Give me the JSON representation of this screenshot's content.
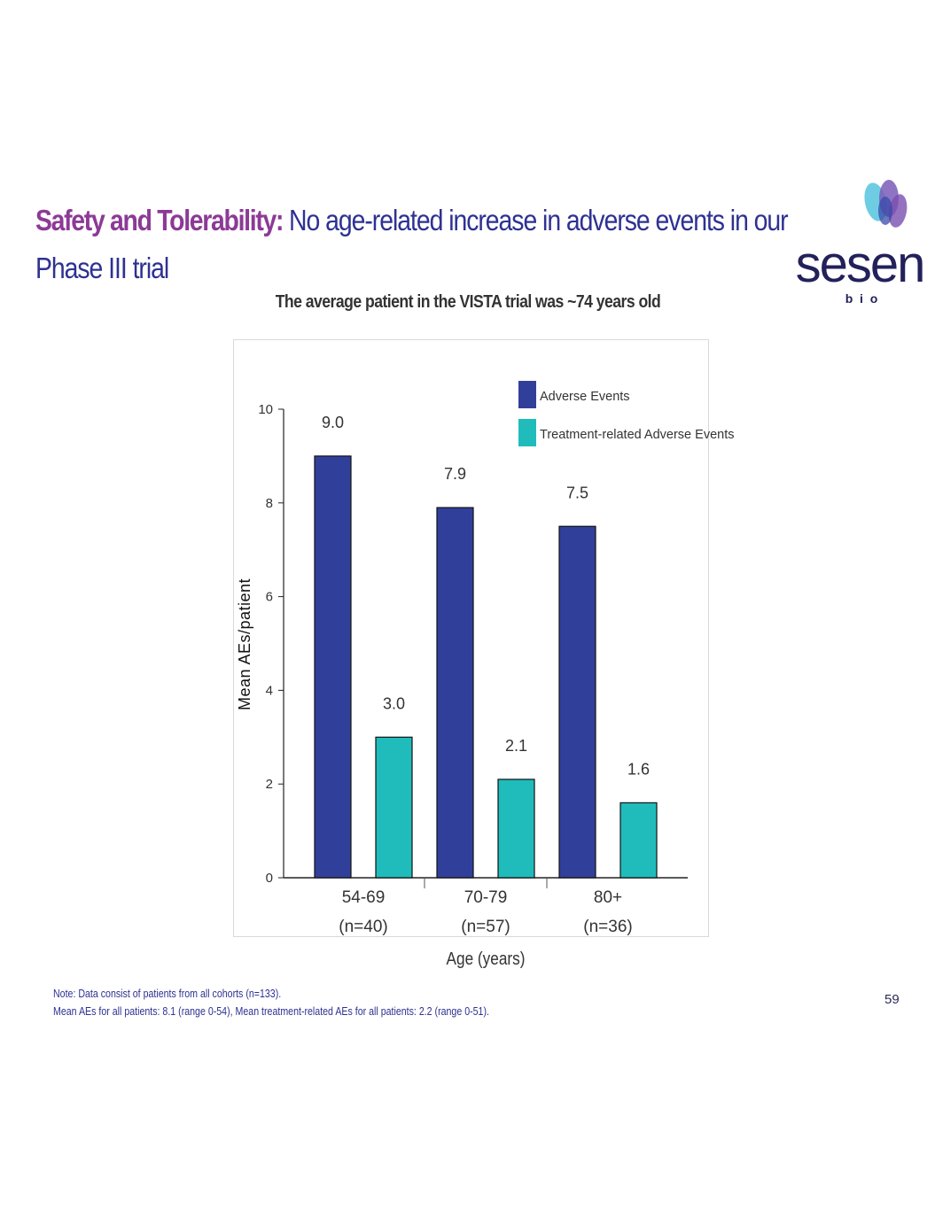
{
  "slide": {
    "title_lead": "Safety and Tolerability:",
    "title_rest_line1": "No age-related increase in adverse events in our",
    "title_line2": "Phase III trial",
    "subtitle": "The average patient in the VISTA trial was ~74 years old",
    "logo_word": "sesen",
    "logo_sub": "b  i  o",
    "note_line1": "Note: Data consist of patients from all cohorts (n=133).",
    "note_line2": "Mean AEs for all patients: 8.1 (range 0-54), Mean treatment-related AEs for all patients: 2.2 (range 0-51).",
    "page_number": "59"
  },
  "colors": {
    "title_lead": "#8c3a96",
    "title_main": "#2e3192",
    "adverse_events": "#30409a",
    "treatment_related": "#20bcbc",
    "logo_text": "#22215a"
  },
  "chart_data": {
    "type": "bar",
    "title": "The average patient in the VISTA trial was ~74 years old",
    "xlabel": "Age (years)",
    "ylabel": "Mean AEs/patient",
    "ylim": [
      0,
      10
    ],
    "yticks": [
      0,
      2,
      4,
      6,
      8,
      10
    ],
    "grid": false,
    "legend_position": "top-right",
    "categories": [
      "54-69",
      "70-79",
      "80+"
    ],
    "category_sublabels": [
      "(n=40)",
      "(n=57)",
      "(n=36)"
    ],
    "series": [
      {
        "name": "Adverse Events",
        "color": "#30409a",
        "values": [
          9.0,
          7.9,
          7.5
        ],
        "labels": [
          "9.0",
          "7.9",
          "7.5"
        ]
      },
      {
        "name": "Treatment-related Adverse Events",
        "color": "#20bcbc",
        "values": [
          3.0,
          2.1,
          1.6
        ],
        "labels": [
          "3.0",
          "2.1",
          "1.6"
        ]
      }
    ]
  }
}
